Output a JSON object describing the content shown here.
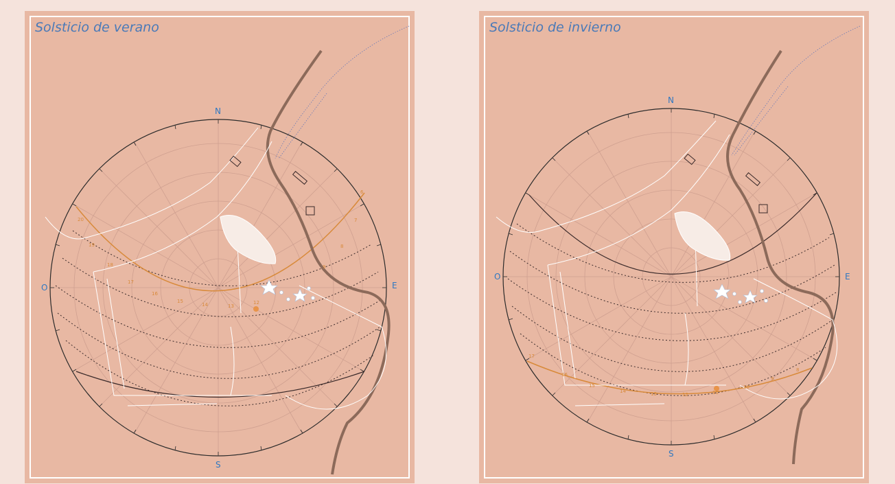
{
  "panels": [
    {
      "id": "summer",
      "title": "Solsticio de verano",
      "compass": {
        "north": "N",
        "south": "S",
        "east": "E",
        "west": "O"
      },
      "sun_path_hours": [
        "20",
        "19",
        "18",
        "17",
        "16",
        "15",
        "14",
        "13",
        "12",
        "9",
        "8",
        "7",
        "6"
      ]
    },
    {
      "id": "winter",
      "title": "Solsticio de invierno",
      "compass": {
        "north": "N",
        "south": "S",
        "east": "E",
        "west": "O"
      },
      "sun_path_hours": [
        "17",
        "16",
        "15",
        "14",
        "13",
        "12",
        "11",
        "10",
        "9",
        "8"
      ]
    }
  ],
  "colors": {
    "background": "#f5e3dc",
    "panel": "#e8b8a3",
    "frame": "#ffffff",
    "title": "#4a7ab8",
    "compass": "#2f78c2",
    "sun_path": "#d88a3a",
    "road": "#8c6a5a",
    "dotted_lines": "#3a2a2a"
  }
}
